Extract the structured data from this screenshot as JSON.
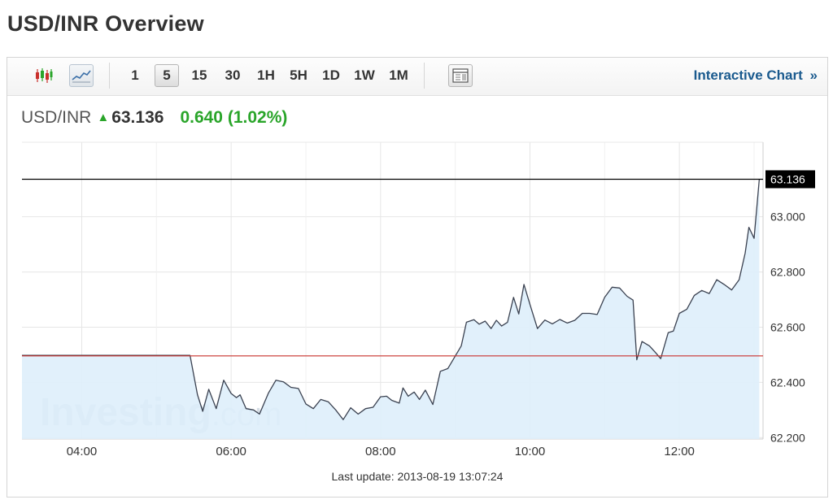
{
  "page": {
    "title": "USD/INR Overview"
  },
  "toolbar": {
    "icons": [
      "candlestick-icon",
      "line-chart-icon",
      "table-layout-icon"
    ],
    "timeframes": [
      "1",
      "5",
      "15",
      "30",
      "1H",
      "5H",
      "1D",
      "1W",
      "1M"
    ],
    "active_timeframe": "5",
    "interactive_link": "Interactive Chart",
    "interactive_arrow": "»"
  },
  "quote": {
    "symbol": "USD/INR",
    "price": "63.136",
    "change": "0.640 (1.02%)",
    "direction": "up"
  },
  "watermark": {
    "brand": "Investing",
    "suffix": ".com"
  },
  "last_update": "Last update: 2013-08-19 13:07:24",
  "colors": {
    "line": "#3a4150",
    "area": "#deeefb",
    "prev_close": "#c9302c",
    "current_line": "#000000",
    "up": "#2aa52a",
    "grid": "#e6e6e6"
  },
  "chart_data": {
    "type": "area",
    "x_ticks": [
      "04:00",
      "06:00",
      "08:00",
      "10:00",
      "12:00"
    ],
    "x_tick_hours": [
      4,
      6,
      8,
      10,
      12
    ],
    "y_ticks": [
      "62.200",
      "62.400",
      "62.600",
      "62.800",
      "63.000"
    ],
    "y_tick_values": [
      62.2,
      62.4,
      62.6,
      62.8,
      63.0
    ],
    "xlim": [
      3.2,
      13.12
    ],
    "ylim": [
      62.195,
      63.27
    ],
    "previous_close": 62.496,
    "current_value": 63.136,
    "current_label": "63.136",
    "x_hours": [
      3.2,
      5.45,
      5.55,
      5.62,
      5.7,
      5.8,
      5.9,
      6.0,
      6.07,
      6.12,
      6.2,
      6.3,
      6.38,
      6.5,
      6.6,
      6.7,
      6.8,
      6.9,
      7.0,
      7.1,
      7.2,
      7.3,
      7.4,
      7.5,
      7.6,
      7.7,
      7.8,
      7.9,
      8.0,
      8.08,
      8.15,
      8.25,
      8.3,
      8.37,
      8.45,
      8.52,
      8.6,
      8.7,
      8.8,
      8.9,
      9.0,
      9.08,
      9.15,
      9.25,
      9.32,
      9.4,
      9.48,
      9.55,
      9.62,
      9.7,
      9.78,
      9.85,
      9.92,
      10.0,
      10.1,
      10.2,
      10.3,
      10.4,
      10.5,
      10.6,
      10.7,
      10.8,
      10.9,
      11.0,
      11.1,
      11.2,
      11.3,
      11.38,
      11.43,
      11.5,
      11.6,
      11.68,
      11.75,
      11.85,
      11.92,
      12.0,
      12.1,
      12.2,
      12.3,
      12.4,
      12.5,
      12.6,
      12.7,
      12.8,
      12.88,
      12.93,
      13.0,
      13.07
    ],
    "values": [
      62.498,
      62.498,
      62.355,
      62.295,
      62.375,
      62.305,
      62.408,
      62.36,
      62.345,
      62.355,
      62.305,
      62.3,
      62.285,
      62.362,
      62.408,
      62.402,
      62.382,
      62.378,
      62.322,
      62.305,
      62.338,
      62.33,
      62.3,
      62.265,
      62.308,
      62.285,
      62.305,
      62.31,
      62.348,
      62.35,
      62.335,
      62.325,
      62.38,
      62.35,
      62.365,
      62.338,
      62.372,
      62.32,
      62.44,
      62.45,
      62.495,
      62.532,
      62.618,
      62.627,
      62.611,
      62.622,
      62.595,
      62.625,
      62.604,
      62.618,
      62.708,
      62.648,
      62.755,
      62.682,
      62.595,
      62.626,
      62.612,
      62.628,
      62.615,
      62.625,
      62.65,
      62.65,
      62.646,
      62.708,
      62.745,
      62.742,
      62.712,
      62.698,
      62.482,
      62.548,
      62.532,
      62.508,
      62.486,
      62.58,
      62.586,
      62.65,
      62.665,
      62.715,
      62.733,
      62.722,
      62.772,
      62.755,
      62.735,
      62.772,
      62.868,
      62.962,
      62.922,
      63.136
    ]
  }
}
